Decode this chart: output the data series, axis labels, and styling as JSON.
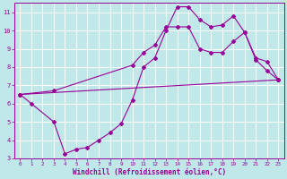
{
  "xlabel": "Windchill (Refroidissement éolien,°C)",
  "background_color": "#c0e8e8",
  "grid_color": "#aed8d8",
  "line_color": "#990099",
  "xlim": [
    -0.5,
    23.5
  ],
  "ylim": [
    3,
    11.5
  ],
  "xticks": [
    0,
    1,
    2,
    3,
    4,
    5,
    6,
    7,
    8,
    9,
    10,
    11,
    12,
    13,
    14,
    15,
    16,
    17,
    18,
    19,
    20,
    21,
    22,
    23
  ],
  "yticks": [
    3,
    4,
    5,
    6,
    7,
    8,
    9,
    10,
    11
  ],
  "lines": [
    {
      "x": [
        0,
        1,
        3,
        4,
        5,
        6,
        7,
        8,
        9,
        10,
        11,
        12,
        13,
        14,
        15,
        16,
        17,
        18,
        19,
        20,
        21,
        22,
        23
      ],
      "y": [
        6.5,
        6.0,
        5.0,
        3.25,
        3.5,
        3.6,
        4.0,
        4.4,
        4.9,
        6.2,
        8.0,
        8.5,
        10.0,
        11.3,
        11.3,
        10.6,
        10.2,
        10.3,
        10.8,
        9.9,
        8.4,
        7.8,
        7.3
      ]
    },
    {
      "x": [
        0,
        3,
        10,
        11,
        12,
        13,
        14,
        15,
        16,
        17,
        18,
        19,
        20,
        21,
        22,
        23
      ],
      "y": [
        6.5,
        6.7,
        8.1,
        8.8,
        9.2,
        10.2,
        10.2,
        10.2,
        9.0,
        8.8,
        8.8,
        9.4,
        9.9,
        8.5,
        8.3,
        7.3
      ]
    },
    {
      "x": [
        0,
        23
      ],
      "y": [
        6.5,
        7.3
      ]
    }
  ]
}
